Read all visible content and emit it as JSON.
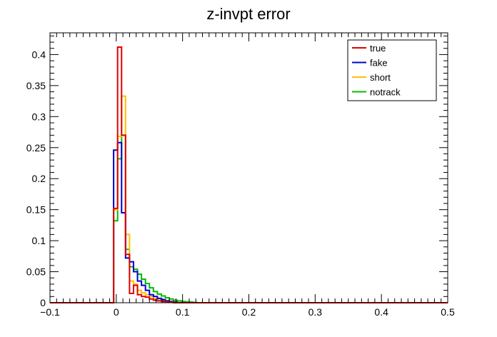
{
  "chart_data": {
    "type": "histogram-step",
    "title": "z-invpt error",
    "xlabel": "",
    "ylabel": "",
    "xlim": [
      -0.1,
      0.5
    ],
    "ylim": [
      0,
      0.435
    ],
    "bin_width": 0.006,
    "x_ticks": [
      -0.1,
      0,
      0.1,
      0.2,
      0.3,
      0.4,
      0.5
    ],
    "x_tick_labels": [
      "−0.1",
      "0",
      "0.1",
      "0.2",
      "0.3",
      "0.4",
      "0.5"
    ],
    "y_ticks": [
      0,
      0.05,
      0.1,
      0.15,
      0.2,
      0.25,
      0.3,
      0.35,
      0.4
    ],
    "y_tick_labels": [
      "0",
      "0.05",
      "0.1",
      "0.15",
      "0.2",
      "0.25",
      "0.3",
      "0.35",
      "0.4"
    ],
    "legend_position": "top-right",
    "series": [
      {
        "name": "true",
        "color": "#e00000",
        "x": [
          -0.004,
          0.002,
          0.008,
          0.014,
          0.02,
          0.026,
          0.032,
          0.038,
          0.044,
          0.05,
          0.056,
          0.062,
          0.068,
          0.074,
          0.08,
          0.086
        ],
        "values": [
          0.152,
          0.412,
          0.27,
          0.078,
          0.015,
          0.028,
          0.013,
          0.01,
          0.009,
          0.006,
          0.004,
          0.003,
          0.002,
          0.001,
          0.001,
          0
        ]
      },
      {
        "name": "fake",
        "color": "#0000cc",
        "x": [
          -0.004,
          0.002,
          0.008,
          0.014,
          0.02,
          0.026,
          0.032,
          0.038,
          0.044,
          0.05,
          0.056,
          0.062,
          0.068,
          0.074,
          0.08,
          0.086,
          0.092
        ],
        "values": [
          0.246,
          0.258,
          0.145,
          0.072,
          0.066,
          0.05,
          0.035,
          0.028,
          0.02,
          0.013,
          0.01,
          0.007,
          0.005,
          0.003,
          0.002,
          0.001,
          0
        ]
      },
      {
        "name": "short",
        "color": "#ffc000",
        "x": [
          -0.004,
          0.002,
          0.008,
          0.014,
          0.02,
          0.026,
          0.032,
          0.038,
          0.044,
          0.05,
          0.056,
          0.062,
          0.068,
          0.074,
          0.08,
          0.086
        ],
        "values": [
          0.15,
          0.268,
          0.333,
          0.11,
          0.035,
          0.03,
          0.02,
          0.016,
          0.013,
          0.01,
          0.006,
          0.004,
          0.003,
          0.002,
          0.001,
          0
        ]
      },
      {
        "name": "notrack",
        "color": "#00bb00",
        "x": [
          -0.004,
          0.002,
          0.008,
          0.014,
          0.02,
          0.026,
          0.032,
          0.038,
          0.044,
          0.05,
          0.056,
          0.062,
          0.068,
          0.074,
          0.08,
          0.086,
          0.092,
          0.098,
          0.104,
          0.11,
          0.116,
          0.122
        ],
        "values": [
          0.132,
          0.232,
          0.27,
          0.086,
          0.058,
          0.054,
          0.046,
          0.038,
          0.031,
          0.024,
          0.018,
          0.014,
          0.011,
          0.008,
          0.006,
          0.004,
          0.003,
          0.002,
          0.0015,
          0.001,
          0.0005,
          0
        ]
      }
    ]
  }
}
